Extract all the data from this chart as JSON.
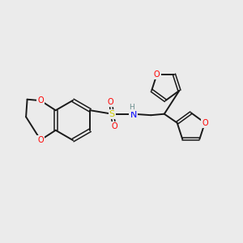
{
  "background_color": "#ebebeb",
  "bond_color": "#1a1a1a",
  "atom_colors": {
    "O": "#ff0000",
    "N": "#0000ff",
    "S": "#cccc00",
    "H": "#6b8e8e",
    "C": "#1a1a1a"
  },
  "figsize": [
    3.0,
    3.0
  ],
  "dpi": 100
}
